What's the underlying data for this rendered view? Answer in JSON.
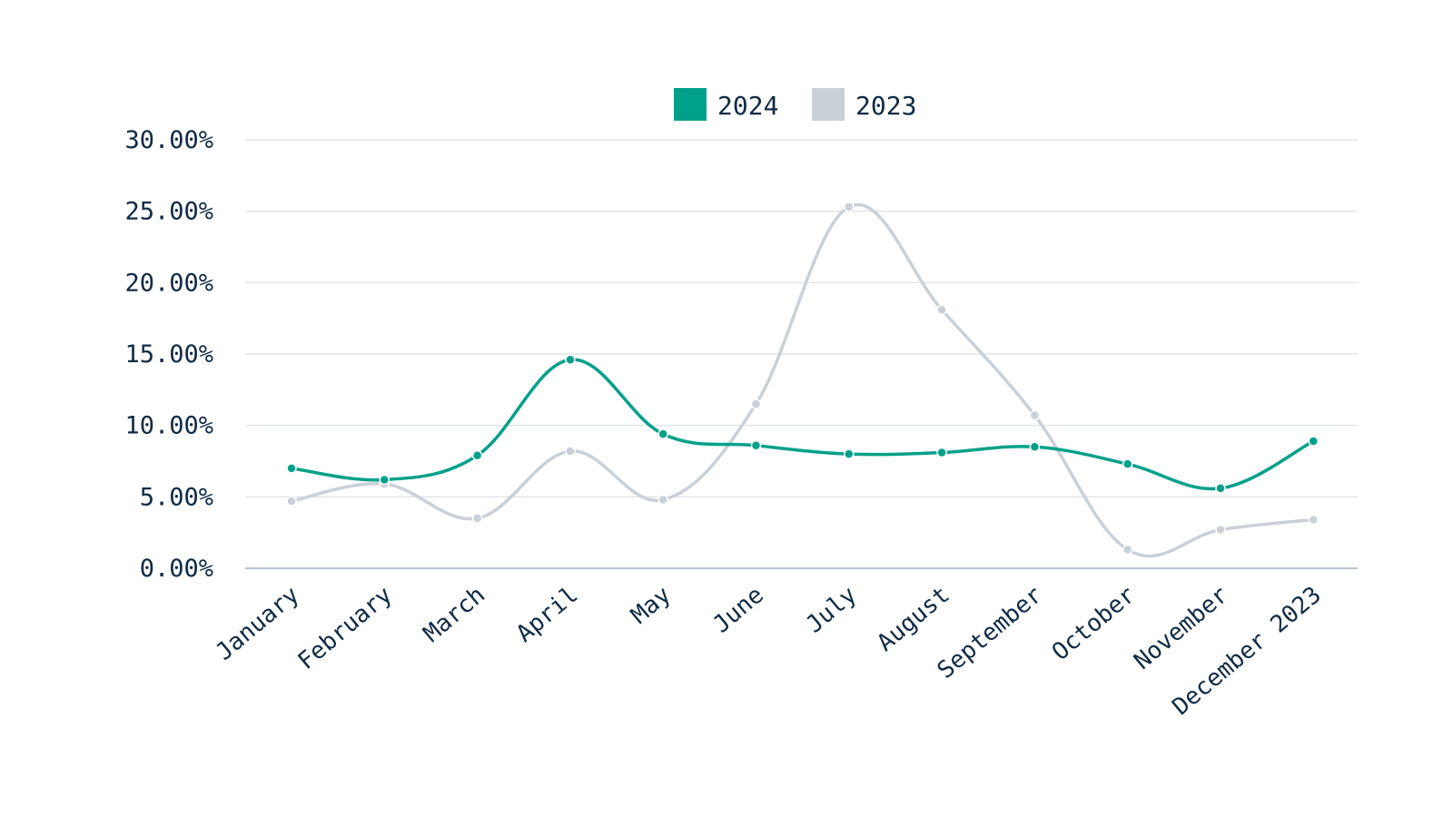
{
  "chart_data": {
    "type": "line",
    "title": "",
    "xlabel": "",
    "ylabel": "",
    "categories": [
      "January",
      "February",
      "March",
      "April",
      "May",
      "June",
      "July",
      "August",
      "September",
      "October",
      "November",
      "December 2023"
    ],
    "series": [
      {
        "name": "2024",
        "color": "#00a08a",
        "values": [
          7.0,
          6.2,
          7.9,
          14.6,
          9.4,
          8.6,
          8.0,
          8.1,
          8.5,
          7.3,
          5.6,
          8.9
        ]
      },
      {
        "name": "2023",
        "color": "#c9d0d8",
        "values": [
          4.7,
          5.9,
          3.5,
          8.2,
          4.8,
          11.5,
          25.3,
          18.1,
          10.7,
          1.3,
          2.7,
          3.4
        ]
      }
    ],
    "ylim": [
      0,
      30
    ],
    "yticks": [
      "0.00%",
      "5.00%",
      "10.00%",
      "15.00%",
      "20.00%",
      "25.00%",
      "30.00%"
    ],
    "grid": true,
    "legend_position": "top-center"
  }
}
